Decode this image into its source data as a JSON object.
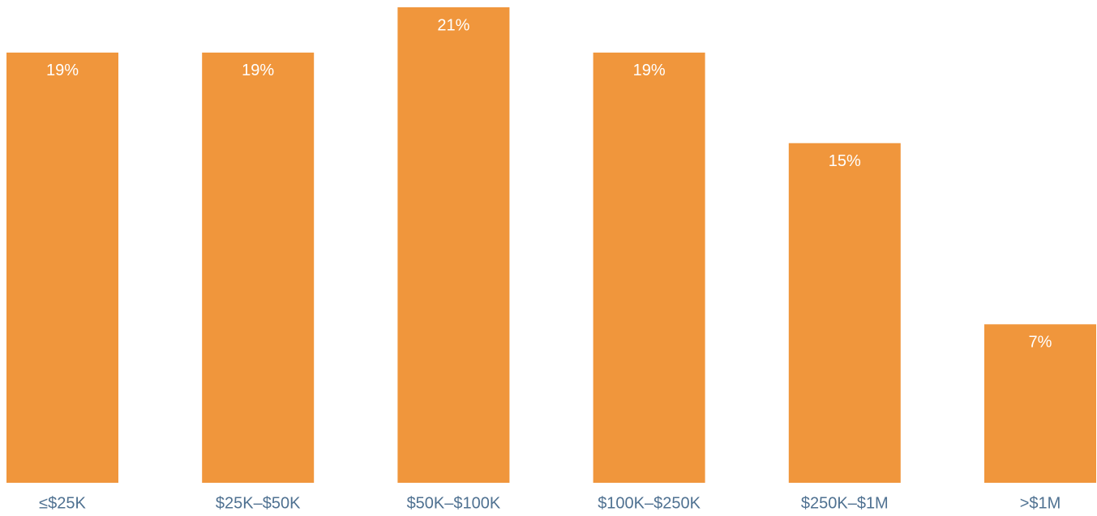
{
  "chart_data": {
    "type": "bar",
    "categories": [
      "≤$25K",
      "$25K–$50K",
      "$50K–$100K",
      "$100K–$250K",
      "$250K–$1M",
      ">$1M"
    ],
    "values": [
      19,
      19,
      21,
      19,
      15,
      7
    ],
    "value_labels": [
      "19%",
      "19%",
      "21%",
      "19%",
      "15%",
      "7%"
    ],
    "color": "#f0963c"
  }
}
